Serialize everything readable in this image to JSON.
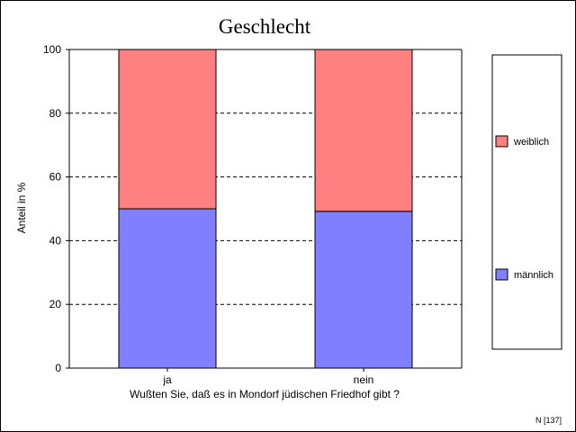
{
  "chart_data": {
    "type": "bar",
    "stacked": true,
    "title": "Geschlecht",
    "xlabel": "Wußten Sie, daß es in Mondorf jüdischen Friedhof gibt ?",
    "ylabel": "Anteil in %",
    "categories": [
      "ja",
      "nein"
    ],
    "series": [
      {
        "name": "männlich",
        "color": "#8080ff",
        "values": [
          50,
          49.2
        ]
      },
      {
        "name": "weiblich",
        "color": "#ff8080",
        "values": [
          50,
          50.8
        ]
      }
    ],
    "ylim": [
      0,
      100
    ],
    "yticks": [
      0,
      20,
      40,
      60,
      80,
      100
    ],
    "grid": "horizontal dashed",
    "legend_position": "right",
    "note": "N [137]"
  }
}
